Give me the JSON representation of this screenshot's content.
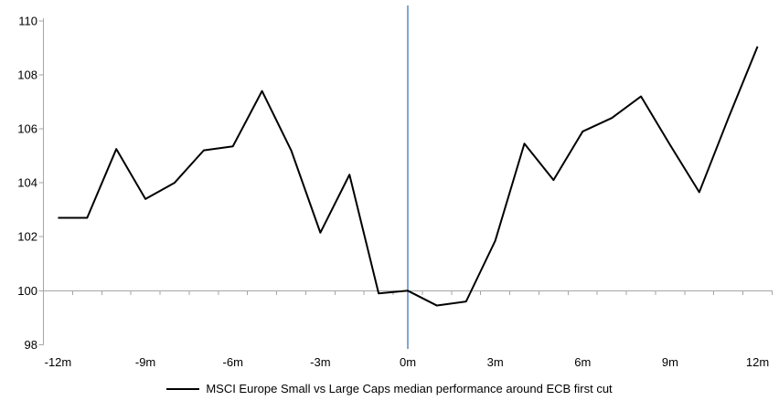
{
  "chart_data": {
    "type": "line",
    "title": "",
    "xlabel": "",
    "ylabel": "",
    "x": [
      -12,
      -11,
      -10,
      -9,
      -8,
      -7,
      -6,
      -5,
      -4,
      -3,
      -2,
      -1,
      0,
      1,
      2,
      3,
      4,
      5,
      6,
      7,
      8,
      9,
      10,
      11,
      12
    ],
    "x_tick_labels": [
      "-12m",
      "-9m",
      "-6m",
      "-3m",
      "0m",
      "3m",
      "6m",
      "9m",
      "12m"
    ],
    "x_tick_positions": [
      -12,
      -9,
      -6,
      -3,
      0,
      3,
      6,
      9,
      12
    ],
    "y_ticks": [
      98,
      100,
      102,
      104,
      106,
      108,
      110
    ],
    "ylim": [
      98,
      110
    ],
    "baseline": 100,
    "grid": "single horizontal axis line at 100 with category tick marks",
    "legend_position": "bottom",
    "axis_color": "#A6A6A6",
    "series": [
      {
        "name": "MSCI Europe Small vs Large Caps median performance around ECB first cut",
        "color": "#000000",
        "values": [
          102.7,
          102.7,
          105.25,
          103.4,
          104.0,
          105.2,
          105.35,
          107.4,
          105.2,
          102.15,
          104.3,
          99.9,
          100.0,
          99.45,
          99.6,
          101.85,
          105.45,
          104.1,
          105.9,
          106.4,
          107.2,
          105.4,
          103.65,
          106.4,
          109.05
        ]
      }
    ],
    "reference_line": {
      "x": 0,
      "color": "#7FA8D0"
    }
  }
}
